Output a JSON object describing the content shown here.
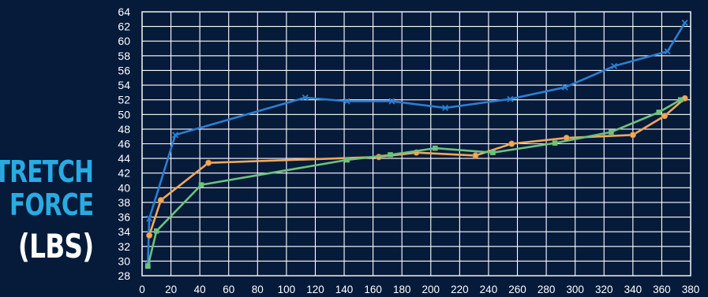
{
  "chart_data": {
    "type": "line",
    "title": "",
    "xlabel": "",
    "ylabel_lines": [
      "STRETCH",
      "FORCE",
      "(LBS)"
    ],
    "xlim": [
      0,
      380
    ],
    "ylim": [
      28,
      64
    ],
    "x_ticks": [
      0,
      20,
      40,
      60,
      80,
      100,
      120,
      140,
      160,
      180,
      200,
      220,
      240,
      260,
      280,
      300,
      320,
      340,
      360,
      380
    ],
    "y_ticks": [
      28,
      30,
      32,
      34,
      36,
      38,
      40,
      42,
      44,
      46,
      48,
      50,
      52,
      54,
      56,
      58,
      60,
      62,
      64
    ],
    "grid": true,
    "legend": "none",
    "series": [
      {
        "color": "#2b7fd1",
        "marker": "x",
        "points": [
          [
            4,
            29.5
          ],
          [
            5,
            35.8
          ],
          [
            23,
            47.2
          ],
          [
            113,
            52.3
          ],
          [
            142,
            51.8
          ],
          [
            173,
            51.8
          ],
          [
            210,
            50.9
          ],
          [
            255,
            52.1
          ],
          [
            293,
            53.7
          ],
          [
            327,
            56.6
          ],
          [
            364,
            58.6
          ],
          [
            376,
            62.5
          ]
        ]
      },
      {
        "color": "#f0a95a",
        "marker": "circle",
        "points": [
          [
            5,
            33.5
          ],
          [
            13,
            38.3
          ],
          [
            46,
            43.4
          ],
          [
            164,
            44.2
          ],
          [
            190,
            44.8
          ],
          [
            231,
            44.4
          ],
          [
            256,
            46.0
          ],
          [
            294,
            46.8
          ],
          [
            340,
            47.2
          ],
          [
            362,
            49.8
          ],
          [
            376,
            52.2
          ]
        ]
      },
      {
        "color": "#6dc27d",
        "marker": "square",
        "points": [
          [
            4,
            29.3
          ],
          [
            10,
            34.1
          ],
          [
            41,
            40.4
          ],
          [
            142,
            43.8
          ],
          [
            172,
            44.5
          ],
          [
            203,
            45.4
          ],
          [
            243,
            44.8
          ],
          [
            286,
            46.1
          ],
          [
            325,
            47.6
          ],
          [
            358,
            50.3
          ],
          [
            373,
            52.0
          ]
        ]
      }
    ]
  },
  "colors": {
    "background": "#061a3a",
    "grid": "#ffffff",
    "tick_label": "#ffffff",
    "ylabel_accent": "#29abe2",
    "ylabel_units": "#ffffff"
  }
}
